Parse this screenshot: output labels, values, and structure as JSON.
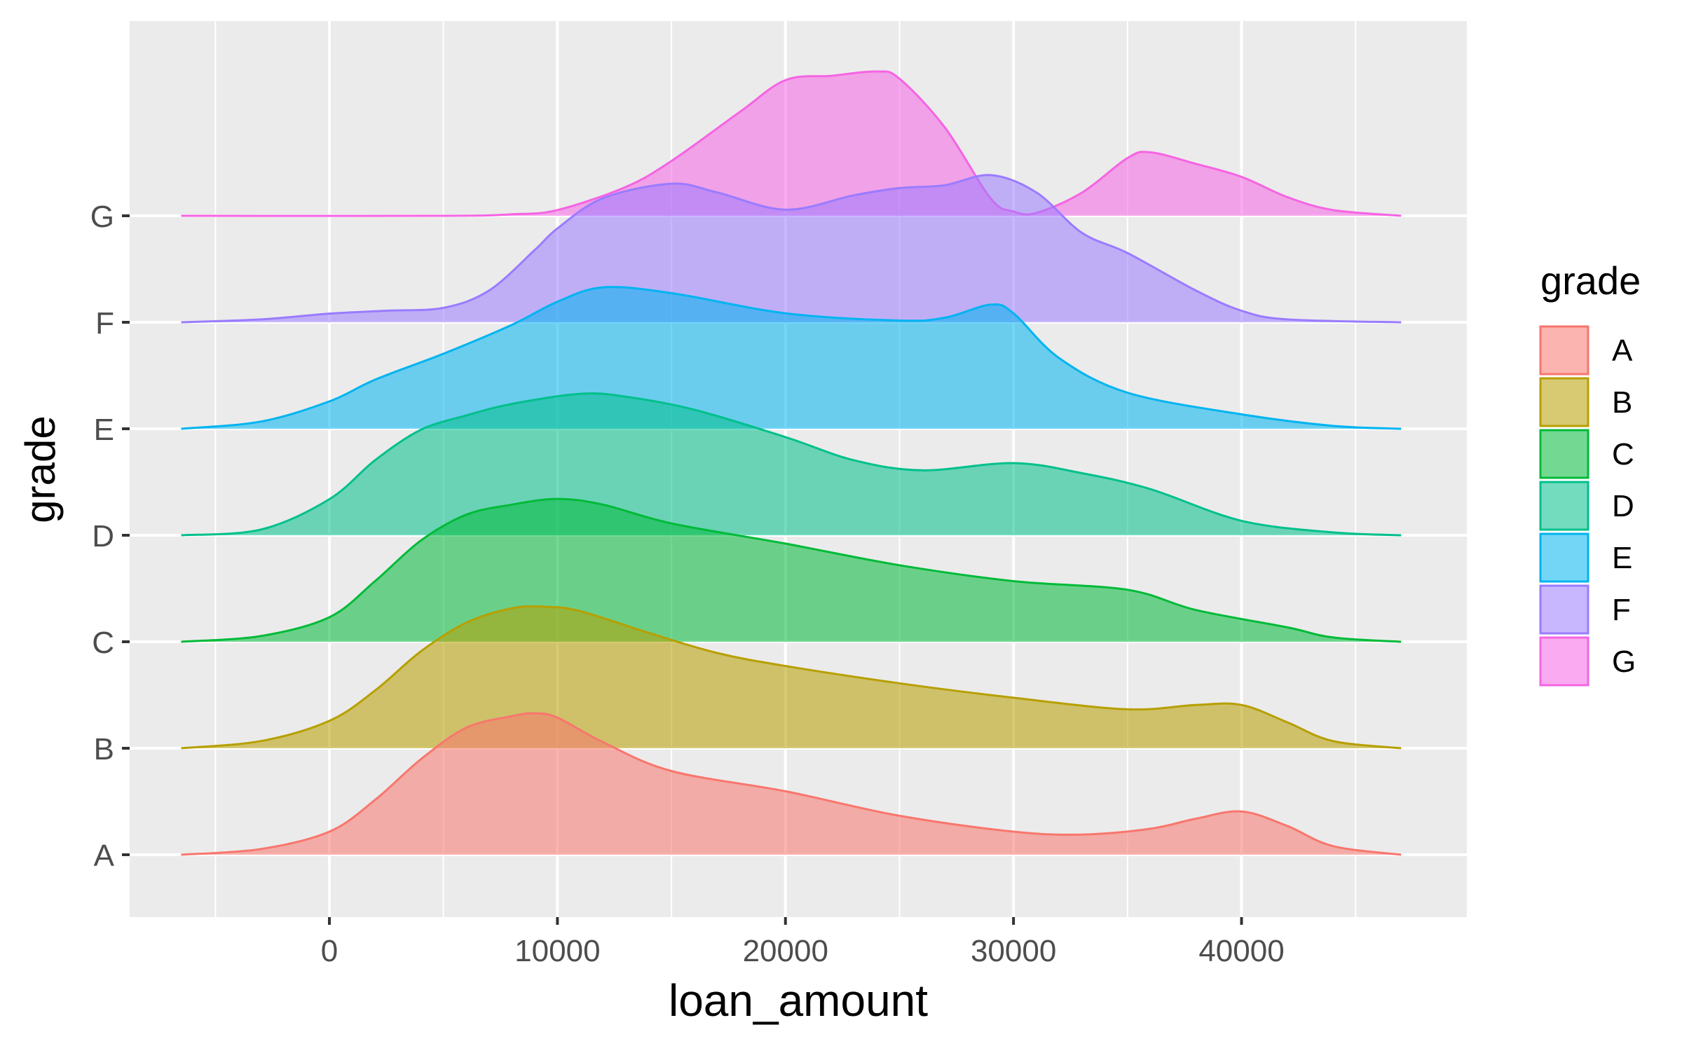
{
  "chart_data": {
    "type": "area",
    "subtype": "ridgeline-density",
    "title": "",
    "xlabel": "loan_amount",
    "ylabel": "grade",
    "xlim": [
      -9000,
      50000
    ],
    "x_ticks": [
      0,
      10000,
      20000,
      30000,
      40000
    ],
    "x_tick_labels": [
      "0",
      "10000",
      "20000",
      "30000",
      "40000"
    ],
    "categories": [
      "A",
      "B",
      "C",
      "D",
      "E",
      "F",
      "G"
    ],
    "grid": true,
    "legend": {
      "title": "grade",
      "position": "right"
    },
    "series": [
      {
        "name": "A",
        "color": "#F8766D",
        "x": [
          -6500,
          -3000,
          0,
          2000,
          4000,
          6000,
          8000,
          9000,
          10000,
          12000,
          15000,
          20000,
          25000,
          30000,
          33000,
          36000,
          38000,
          40000,
          42000,
          44000,
          47000
        ],
        "density": [
          0,
          0.04,
          0.16,
          0.38,
          0.66,
          0.88,
          0.96,
          0.98,
          0.95,
          0.78,
          0.58,
          0.44,
          0.27,
          0.16,
          0.14,
          0.18,
          0.25,
          0.3,
          0.2,
          0.06,
          0
        ]
      },
      {
        "name": "B",
        "color": "#B79F00",
        "x": [
          -6500,
          -3000,
          0,
          2000,
          4000,
          6000,
          8000,
          9500,
          11000,
          14000,
          17000,
          20000,
          25000,
          30000,
          35000,
          38000,
          40000,
          42000,
          44000,
          47000
        ],
        "density": [
          0,
          0.05,
          0.19,
          0.4,
          0.67,
          0.87,
          0.97,
          0.98,
          0.95,
          0.8,
          0.66,
          0.57,
          0.45,
          0.35,
          0.27,
          0.3,
          0.3,
          0.18,
          0.05,
          0
        ]
      },
      {
        "name": "C",
        "color": "#00BA38",
        "x": [
          -6500,
          -3000,
          0,
          2000,
          4000,
          6000,
          8000,
          10000,
          12000,
          15000,
          20000,
          25000,
          30000,
          35000,
          38000,
          42000,
          44000,
          47000
        ],
        "density": [
          0,
          0.04,
          0.17,
          0.42,
          0.7,
          0.88,
          0.95,
          0.99,
          0.95,
          0.82,
          0.68,
          0.53,
          0.42,
          0.36,
          0.22,
          0.1,
          0.03,
          0
        ]
      },
      {
        "name": "D",
        "color": "#00C08B",
        "x": [
          -6500,
          -3000,
          0,
          2000,
          4000,
          6000,
          8000,
          11000,
          13000,
          16000,
          20000,
          23000,
          26000,
          30000,
          33000,
          36000,
          40000,
          44000,
          47000
        ],
        "density": [
          0,
          0.04,
          0.25,
          0.52,
          0.73,
          0.83,
          0.91,
          0.98,
          0.96,
          0.87,
          0.68,
          0.52,
          0.45,
          0.5,
          0.43,
          0.32,
          0.1,
          0.02,
          0
        ]
      },
      {
        "name": "E",
        "color": "#00B4F0",
        "x": [
          -6500,
          -3000,
          0,
          2000,
          5000,
          8000,
          10000,
          12000,
          15000,
          20000,
          25000,
          27000,
          29000,
          30000,
          32000,
          35000,
          40000,
          44000,
          47000
        ],
        "density": [
          0,
          0.05,
          0.19,
          0.34,
          0.52,
          0.72,
          0.88,
          0.98,
          0.94,
          0.8,
          0.75,
          0.77,
          0.86,
          0.8,
          0.49,
          0.25,
          0.1,
          0.02,
          0
        ]
      },
      {
        "name": "F",
        "color": "#9A7BFF",
        "x": [
          -6500,
          -3000,
          0,
          2500,
          5000,
          7000,
          9000,
          10000,
          12000,
          15000,
          17000,
          20000,
          23000,
          25000,
          27000,
          29000,
          31000,
          33000,
          35000,
          38000,
          40000,
          42000,
          47000
        ],
        "density": [
          0,
          0.02,
          0.06,
          0.08,
          0.1,
          0.22,
          0.5,
          0.65,
          0.86,
          0.96,
          0.9,
          0.78,
          0.88,
          0.93,
          0.95,
          1.02,
          0.9,
          0.62,
          0.48,
          0.22,
          0.08,
          0.02,
          0
        ]
      },
      {
        "name": "G",
        "color": "#F564E3",
        "x": [
          -6500,
          5000,
          8000,
          10000,
          13000,
          15000,
          18000,
          20000,
          22000,
          24000,
          25000,
          27000,
          29000,
          30000,
          31000,
          33000,
          35000,
          36000,
          38000,
          40000,
          42000,
          44000,
          47000
        ],
        "density": [
          0,
          0,
          0.01,
          0.04,
          0.2,
          0.38,
          0.72,
          0.94,
          0.97,
          1.0,
          0.95,
          0.61,
          0.12,
          0.03,
          0.02,
          0.16,
          0.4,
          0.44,
          0.36,
          0.27,
          0.13,
          0.04,
          0
        ]
      }
    ]
  }
}
